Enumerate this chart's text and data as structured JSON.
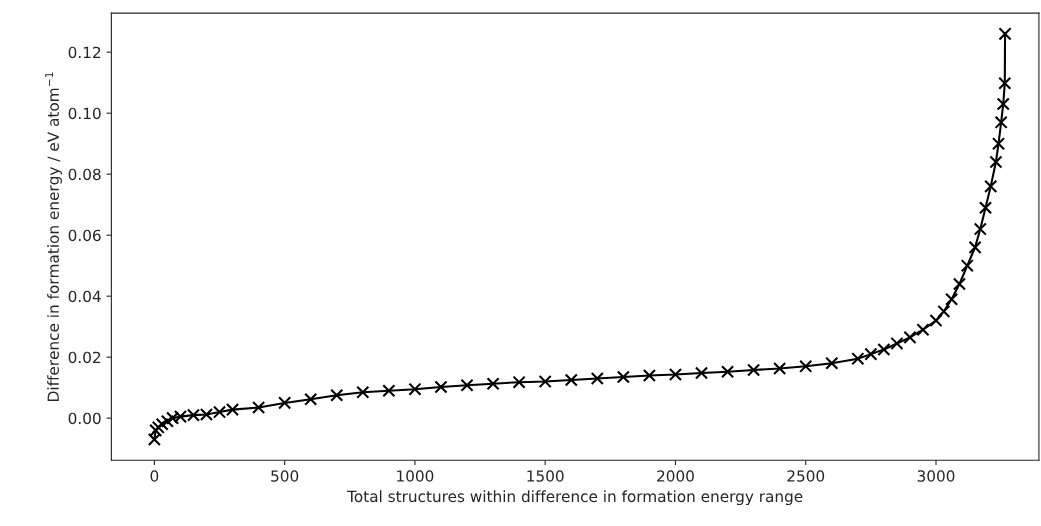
{
  "chart_data": {
    "type": "line",
    "xlabel": "Total structures within difference in formation energy range",
    "ylabel": "Difference in formation energy / eV atom$^{−1}$",
    "xlim": [
      -165,
      3395
    ],
    "xticks": [
      0,
      500,
      1000,
      1500,
      2000,
      2500,
      3000
    ],
    "ylim": [
      -0.0138,
      0.1328
    ],
    "yticks": [
      {
        "value": 0.0,
        "label": "0.00"
      },
      {
        "value": 0.02,
        "label": "0.02"
      },
      {
        "value": 0.04,
        "label": "0.04"
      },
      {
        "value": 0.06,
        "label": "0.06"
      },
      {
        "value": 0.08,
        "label": "0.08"
      },
      {
        "value": 0.1,
        "label": "0.10"
      },
      {
        "value": 0.12,
        "label": "0.12"
      }
    ],
    "marker": "cross",
    "line_style": "solid",
    "grid": false,
    "series": [
      {
        "color": "#000000",
        "x": [
          0,
          5,
          15,
          30,
          50,
          70,
          100,
          150,
          200,
          250,
          300,
          400,
          500,
          600,
          700,
          800,
          900,
          1000,
          1100,
          1200,
          1300,
          1400,
          1500,
          1600,
          1700,
          1800,
          1900,
          2000,
          2100,
          2200,
          2300,
          2400,
          2500,
          2600,
          2700,
          2750,
          2800,
          2850,
          2900,
          2950,
          3000,
          3030,
          3060,
          3090,
          3120,
          3150,
          3170,
          3190,
          3210,
          3230,
          3240,
          3250,
          3258,
          3264,
          3265
        ],
        "values": [
          -0.007,
          -0.004,
          -0.003,
          -0.002,
          -0.001,
          0.0,
          0.0005,
          0.001,
          0.0012,
          0.002,
          0.0028,
          0.0035,
          0.005,
          0.0062,
          0.0075,
          0.0085,
          0.009,
          0.0095,
          0.0102,
          0.0108,
          0.0113,
          0.0118,
          0.012,
          0.0125,
          0.013,
          0.0135,
          0.014,
          0.0143,
          0.0148,
          0.0152,
          0.0158,
          0.0163,
          0.017,
          0.018,
          0.0195,
          0.021,
          0.0225,
          0.0245,
          0.0265,
          0.029,
          0.032,
          0.035,
          0.039,
          0.044,
          0.05,
          0.056,
          0.062,
          0.069,
          0.076,
          0.084,
          0.09,
          0.097,
          0.103,
          0.1098,
          0.126
        ]
      }
    ]
  }
}
